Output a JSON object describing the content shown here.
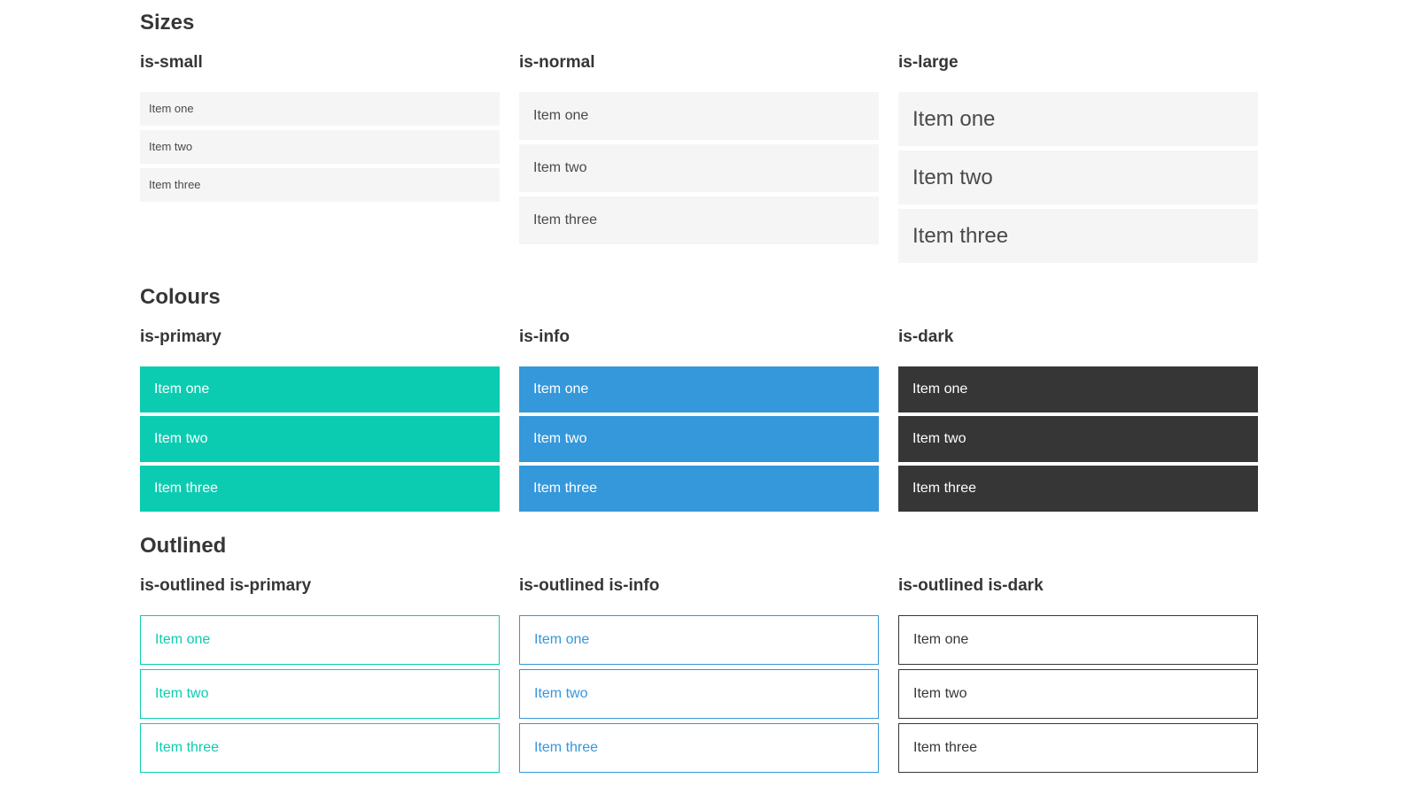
{
  "colors": {
    "page_bg": "#ffffff",
    "primary": "#0bccb1",
    "info": "#3498db",
    "dark": "#363636",
    "light_bg": "#f5f5f5",
    "item_text": "#4a4a4a",
    "heading_text": "#363636",
    "white_text": "#ffffff"
  },
  "sections": [
    {
      "title": "Sizes",
      "columns": [
        {
          "label": "is-small",
          "items": [
            "Item one",
            "Item two",
            "Item three"
          ]
        },
        {
          "label": "is-normal",
          "items": [
            "Item one",
            "Item two",
            "Item three"
          ]
        },
        {
          "label": "is-large",
          "items": [
            "Item one",
            "Item two",
            "Item three"
          ]
        }
      ]
    },
    {
      "title": "Colours",
      "columns": [
        {
          "label": "is-primary",
          "items": [
            "Item one",
            "Item two",
            "Item three"
          ]
        },
        {
          "label": "is-info",
          "items": [
            "Item one",
            "Item two",
            "Item three"
          ]
        },
        {
          "label": "is-dark",
          "items": [
            "Item one",
            "Item two",
            "Item three"
          ]
        }
      ]
    },
    {
      "title": "Outlined",
      "columns": [
        {
          "label": "is-outlined is-primary",
          "items": [
            "Item one",
            "Item two",
            "Item three"
          ]
        },
        {
          "label": "is-outlined is-info",
          "items": [
            "Item one",
            "Item two",
            "Item three"
          ]
        },
        {
          "label": "is-outlined is-dark",
          "items": [
            "Item one",
            "Item two",
            "Item three"
          ]
        }
      ]
    }
  ]
}
